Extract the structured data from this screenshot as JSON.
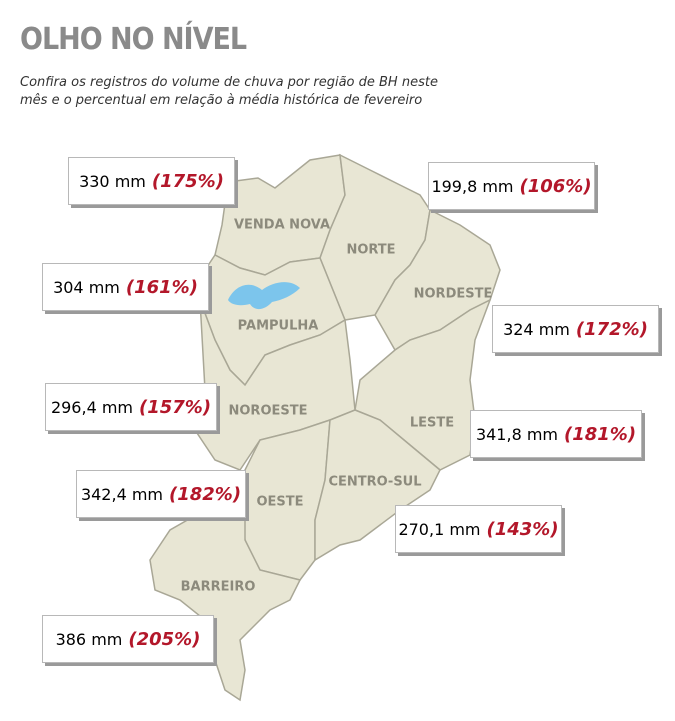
{
  "header": {
    "title": "OLHO NO NÍVEL",
    "subtitle": "Confira os registros do volume de chuva por região de BH neste mês e o percentual em relação à média histórica de fevereiro"
  },
  "regions": [
    {
      "name": "VENDA NOVA",
      "amount": "330 mm",
      "percent": "(175%)"
    },
    {
      "name": "NORTE",
      "amount": "199,8 mm",
      "percent": "(106%)"
    },
    {
      "name": "PAMPULHA",
      "amount": "304 mm",
      "percent": "(161%)"
    },
    {
      "name": "NORDESTE",
      "amount": "324 mm",
      "percent": "(172%)"
    },
    {
      "name": "NOROESTE",
      "amount": "296,4 mm",
      "percent": "(157%)"
    },
    {
      "name": "LESTE",
      "amount": "341,8 mm",
      "percent": "(181%)"
    },
    {
      "name": "OESTE",
      "amount": "342,4 mm",
      "percent": "(182%)"
    },
    {
      "name": "CENTRO-SUL",
      "amount": "270,1 mm",
      "percent": "(143%)"
    },
    {
      "name": "BARREIRO",
      "amount": "386 mm",
      "percent": "(205%)"
    }
  ]
}
